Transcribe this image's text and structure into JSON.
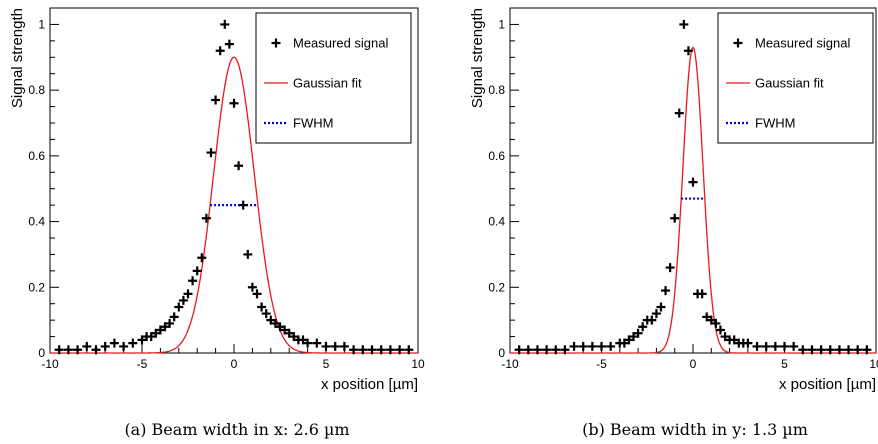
{
  "chart_data": [
    {
      "type": "scatter",
      "xlabel": "x position [µm]",
      "ylabel": "Signal strength",
      "caption": "(a) Beam width in x: 2.6 µm",
      "xlim": [
        -10,
        10
      ],
      "ylim": [
        0,
        1.05
      ],
      "xticks": [
        -10,
        -5,
        0,
        5,
        10
      ],
      "yticks": [
        0,
        0.2,
        0.4,
        0.6,
        0.8,
        1
      ],
      "ytick_labels": [
        "0",
        "0.2",
        "0.4",
        "0.6",
        "0.8",
        "1"
      ],
      "legend": {
        "position": "top-right",
        "entries": [
          "Measured signal",
          "Gaussian fit",
          "FWHM"
        ]
      },
      "colors": {
        "measured": "#000000",
        "fit": "#e8191b",
        "fwhm": "#0000dd"
      },
      "series": [
        {
          "name": "Measured signal",
          "x": [
            -9.5,
            -9.0,
            -8.5,
            -8.0,
            -7.5,
            -7.0,
            -6.5,
            -6.0,
            -5.5,
            -5.0,
            -4.75,
            -4.5,
            -4.25,
            -4.0,
            -3.75,
            -3.5,
            -3.25,
            -3.0,
            -2.75,
            -2.5,
            -2.25,
            -2.0,
            -1.75,
            -1.5,
            -1.25,
            -1.0,
            -0.75,
            -0.5,
            -0.25,
            0.0,
            0.25,
            0.5,
            0.75,
            1.0,
            1.25,
            1.5,
            1.75,
            2.0,
            2.25,
            2.5,
            2.75,
            3.0,
            3.25,
            3.5,
            3.75,
            4.0,
            4.5,
            5.0,
            5.5,
            6.0,
            6.5,
            7.0,
            7.5,
            8.0,
            8.5,
            9.0,
            9.5
          ],
          "y": [
            0.01,
            0.01,
            0.01,
            0.02,
            0.01,
            0.02,
            0.03,
            0.02,
            0.03,
            0.04,
            0.05,
            0.05,
            0.06,
            0.07,
            0.08,
            0.09,
            0.11,
            0.14,
            0.16,
            0.18,
            0.22,
            0.25,
            0.29,
            0.41,
            0.61,
            0.77,
            0.92,
            1.0,
            0.94,
            0.76,
            0.57,
            0.45,
            0.3,
            0.2,
            0.18,
            0.14,
            0.12,
            0.1,
            0.09,
            0.08,
            0.07,
            0.06,
            0.05,
            0.04,
            0.04,
            0.03,
            0.03,
            0.02,
            0.02,
            0.02,
            0.01,
            0.01,
            0.01,
            0.01,
            0.01,
            0.01,
            0.01
          ]
        },
        {
          "name": "Gaussian fit",
          "amplitude": 0.9,
          "mean": 0.0,
          "fwhm": 2.6
        },
        {
          "name": "FWHM",
          "x": [
            -1.3,
            1.3
          ],
          "y": 0.45
        }
      ]
    },
    {
      "type": "scatter",
      "xlabel": "x position [µm]",
      "ylabel": "Signal strength",
      "caption": "(b) Beam width in y: 1.3 µm",
      "xlim": [
        -10,
        10
      ],
      "ylim": [
        0,
        1.05
      ],
      "xticks": [
        -10,
        -5,
        0,
        5,
        10
      ],
      "yticks": [
        0,
        0.2,
        0.4,
        0.6,
        0.8,
        1
      ],
      "ytick_labels": [
        "0",
        "0.2",
        "0.4",
        "0.6",
        "0.8",
        "1"
      ],
      "legend": {
        "position": "top-right",
        "entries": [
          "Measured signal",
          "Gaussian fit",
          "FWHM"
        ]
      },
      "colors": {
        "measured": "#000000",
        "fit": "#e8191b",
        "fwhm": "#0000dd"
      },
      "series": [
        {
          "name": "Measured signal",
          "x": [
            -9.5,
            -9.0,
            -8.5,
            -8.0,
            -7.5,
            -7.0,
            -6.5,
            -6.0,
            -5.5,
            -5.0,
            -4.5,
            -4.0,
            -3.75,
            -3.5,
            -3.25,
            -3.0,
            -2.75,
            -2.5,
            -2.25,
            -2.0,
            -1.75,
            -1.5,
            -1.25,
            -1.0,
            -0.75,
            -0.5,
            -0.25,
            0.0,
            0.25,
            0.5,
            0.75,
            1.0,
            1.25,
            1.5,
            1.75,
            2.0,
            2.25,
            2.5,
            2.75,
            3.0,
            3.5,
            4.0,
            4.5,
            5.0,
            5.5,
            6.0,
            6.5,
            7.0,
            7.5,
            8.0,
            8.5,
            9.0,
            9.5
          ],
          "y": [
            0.01,
            0.01,
            0.01,
            0.01,
            0.01,
            0.01,
            0.02,
            0.02,
            0.02,
            0.02,
            0.02,
            0.03,
            0.03,
            0.04,
            0.05,
            0.06,
            0.08,
            0.1,
            0.1,
            0.12,
            0.14,
            0.19,
            0.26,
            0.41,
            0.73,
            1.0,
            0.92,
            0.52,
            0.18,
            0.18,
            0.11,
            0.1,
            0.09,
            0.07,
            0.05,
            0.04,
            0.04,
            0.03,
            0.03,
            0.03,
            0.02,
            0.02,
            0.02,
            0.02,
            0.02,
            0.01,
            0.01,
            0.01,
            0.01,
            0.01,
            0.01,
            0.01,
            0.01
          ]
        },
        {
          "name": "Gaussian fit",
          "amplitude": 0.93,
          "mean": 0.0,
          "fwhm": 1.3
        },
        {
          "name": "FWHM",
          "x": [
            -0.65,
            0.65
          ],
          "y": 0.47
        }
      ]
    }
  ]
}
